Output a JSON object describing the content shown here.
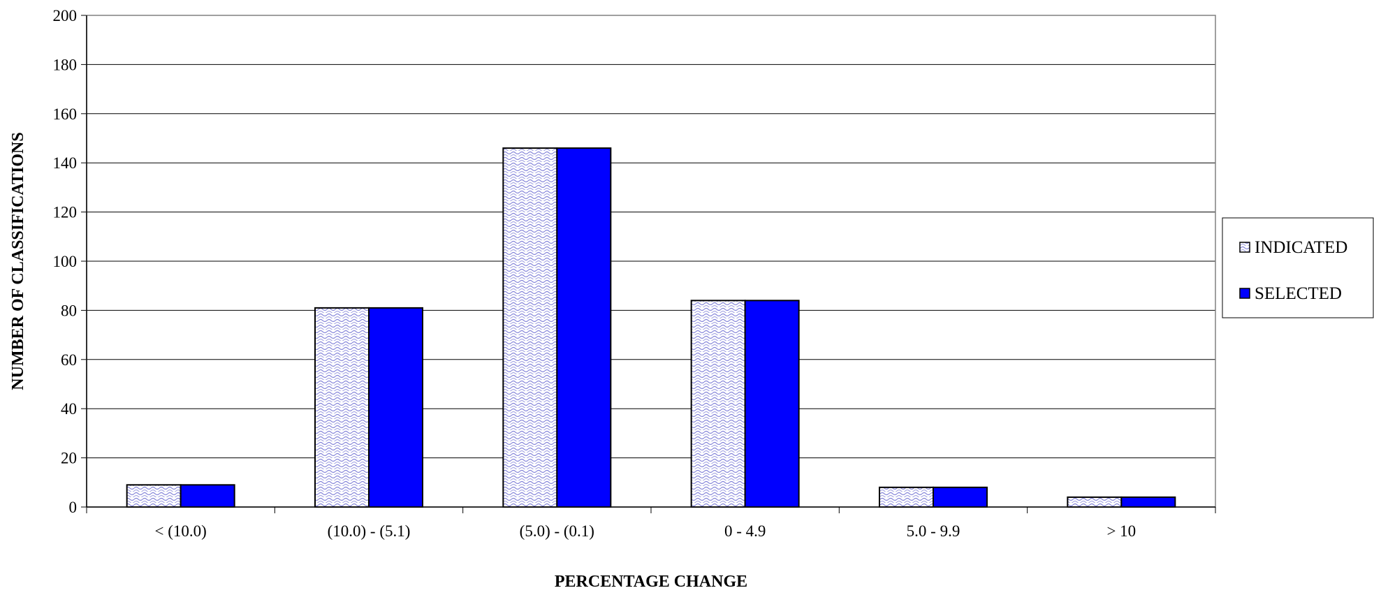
{
  "chart_data": {
    "type": "bar",
    "title": "",
    "xlabel": "PERCENTAGE CHANGE",
    "ylabel": "NUMBER OF CLASSIFICATIONS",
    "categories": [
      "< (10.0)",
      "(10.0) - (5.1)",
      "(5.0) - (0.1)",
      "0 - 4.9",
      "5.0 - 9.9",
      "> 10"
    ],
    "series": [
      {
        "name": "INDICATED",
        "values": [
          9,
          81,
          146,
          84,
          8,
          4
        ],
        "fill": "pattern",
        "color": "#7b7bd6"
      },
      {
        "name": "SELECTED",
        "values": [
          9,
          81,
          146,
          84,
          8,
          4
        ],
        "fill": "solid",
        "color": "#0000ff"
      }
    ],
    "ylim": [
      0,
      200
    ],
    "yticks": [
      "0",
      "20",
      "40",
      "60",
      "80",
      "100",
      "120",
      "140",
      "160",
      "180",
      "200"
    ],
    "grid": true,
    "legend_position": "right"
  }
}
